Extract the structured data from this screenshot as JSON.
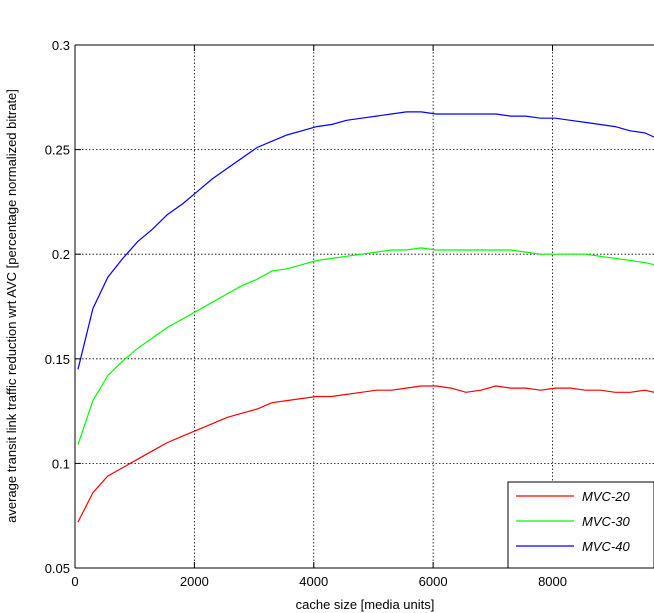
{
  "chart_data": {
    "type": "line",
    "title": "",
    "xlabel": "cache size [media units]",
    "ylabel": "average transit link traffic reduction wrt AVC [percentage normalized bitrate]",
    "xlim": [
      0,
      9700
    ],
    "ylim": [
      0.05,
      0.3
    ],
    "xticks": [
      0,
      2000,
      4000,
      6000,
      8000
    ],
    "yticks": [
      0.05,
      0.1,
      0.15,
      0.2,
      0.25,
      0.3
    ],
    "xtick_labels": [
      "0",
      "2000",
      "4000",
      "6000",
      "8000"
    ],
    "ytick_labels": [
      "0.05",
      "0.1",
      "0.15",
      "0.2",
      "0.25",
      "0.3"
    ],
    "grid": true,
    "legend_position": "bottom-right",
    "x": [
      50,
      300,
      550,
      800,
      1050,
      1300,
      1550,
      1800,
      2050,
      2300,
      2550,
      2800,
      3050,
      3300,
      3550,
      3800,
      4050,
      4300,
      4550,
      4800,
      5050,
      5300,
      5550,
      5800,
      6050,
      6300,
      6550,
      6800,
      7050,
      7300,
      7550,
      7800,
      8050,
      8300,
      8550,
      8800,
      9050,
      9300,
      9550,
      9700
    ],
    "series": [
      {
        "name": "MVC-20",
        "color": "#ff0000",
        "values": [
          0.072,
          0.086,
          0.094,
          0.098,
          0.102,
          0.106,
          0.11,
          0.113,
          0.116,
          0.119,
          0.122,
          0.124,
          0.126,
          0.129,
          0.13,
          0.131,
          0.132,
          0.132,
          0.133,
          0.134,
          0.135,
          0.135,
          0.136,
          0.137,
          0.137,
          0.136,
          0.134,
          0.135,
          0.137,
          0.136,
          0.136,
          0.135,
          0.136,
          0.136,
          0.135,
          0.135,
          0.134,
          0.134,
          0.135,
          0.134
        ]
      },
      {
        "name": "MVC-30",
        "color": "#00ff00",
        "values": [
          0.109,
          0.13,
          0.142,
          0.149,
          0.155,
          0.16,
          0.165,
          0.169,
          0.173,
          0.177,
          0.181,
          0.185,
          0.188,
          0.192,
          0.193,
          0.195,
          0.197,
          0.198,
          0.199,
          0.2,
          0.201,
          0.202,
          0.202,
          0.203,
          0.202,
          0.202,
          0.202,
          0.202,
          0.202,
          0.202,
          0.201,
          0.2,
          0.2,
          0.2,
          0.2,
          0.199,
          0.198,
          0.197,
          0.196,
          0.195
        ]
      },
      {
        "name": "MVC-40",
        "color": "#0000ff",
        "values": [
          0.145,
          0.174,
          0.189,
          0.198,
          0.206,
          0.212,
          0.219,
          0.224,
          0.23,
          0.236,
          0.241,
          0.246,
          0.251,
          0.254,
          0.257,
          0.259,
          0.261,
          0.262,
          0.264,
          0.265,
          0.266,
          0.267,
          0.268,
          0.268,
          0.267,
          0.267,
          0.267,
          0.267,
          0.267,
          0.266,
          0.266,
          0.265,
          0.265,
          0.264,
          0.263,
          0.262,
          0.261,
          0.259,
          0.258,
          0.256
        ]
      }
    ]
  }
}
